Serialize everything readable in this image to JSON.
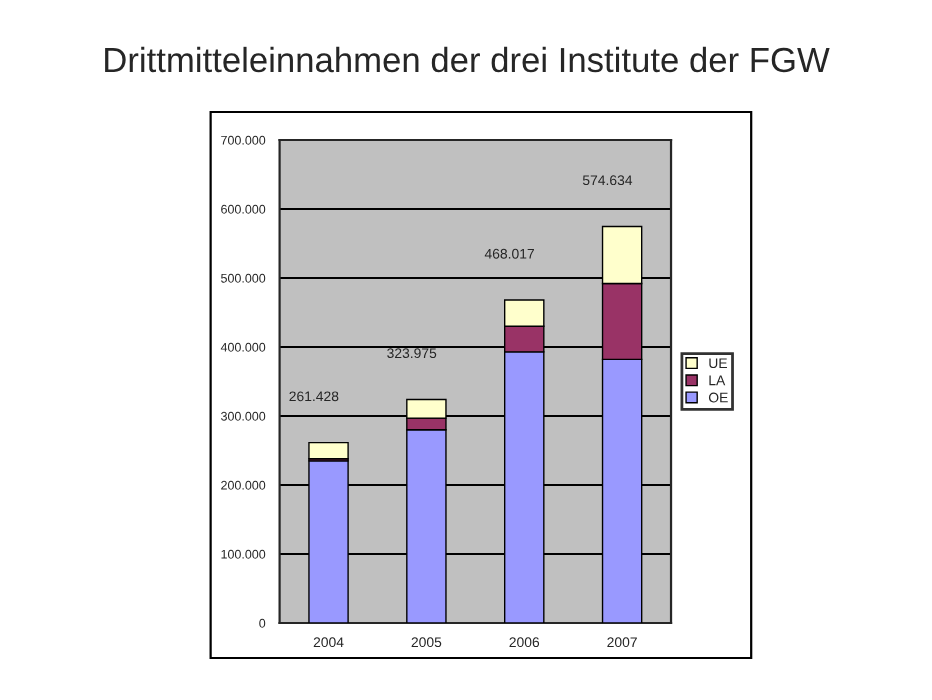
{
  "chart_data": {
    "type": "bar",
    "title": "Drittmitteleinnahmen der drei Institute der FGW",
    "categories": [
      "2004",
      "2005",
      "2006",
      "2007"
    ],
    "stacked": true,
    "series": [
      {
        "name": "OE",
        "color": "#9999ff",
        "values": [
          235000,
          280000,
          393000,
          382000
        ]
      },
      {
        "name": "LA",
        "color": "#993366",
        "values": [
          3000,
          17000,
          37000,
          110000
        ]
      },
      {
        "name": "UE",
        "color": "#ffffcc",
        "values": [
          23428,
          26975,
          38017,
          82634
        ]
      }
    ],
    "totals": [
      "261.428",
      "323.975",
      "468.017",
      "574.634"
    ],
    "ylim": [
      0,
      700000
    ],
    "yticks": [
      {
        "value": 0,
        "label": "0"
      },
      {
        "value": 100000,
        "label": "100.000"
      },
      {
        "value": 200000,
        "label": "200.000"
      },
      {
        "value": 300000,
        "label": "300.000"
      },
      {
        "value": 400000,
        "label": "400.000"
      },
      {
        "value": 500000,
        "label": "500.000"
      },
      {
        "value": 600000,
        "label": "600.000"
      },
      {
        "value": 700000,
        "label": "700.000"
      }
    ],
    "grid": "y",
    "legend": "right"
  }
}
